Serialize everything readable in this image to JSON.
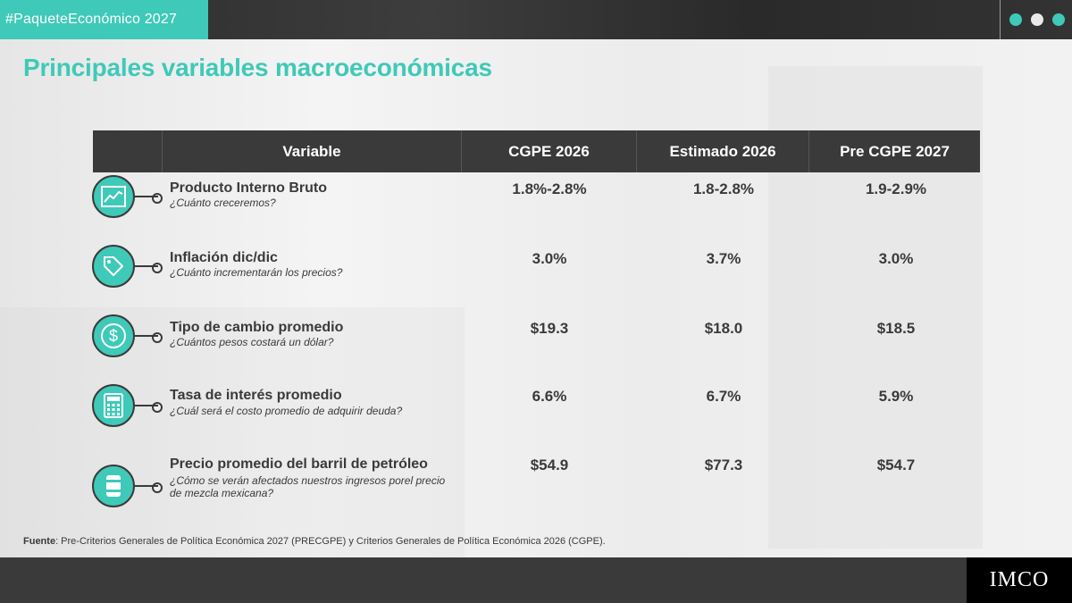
{
  "header": {
    "hashtag": "#PaqueteEconómico 2027",
    "accent_color": "#3fc9b8",
    "dark_color": "#3a3a3a"
  },
  "title": "Principales variables macroeconómicas",
  "table": {
    "columns": [
      "Variable",
      "CGPE 2026",
      "Estimado 2026",
      "Pre CGPE 2027"
    ],
    "rows": [
      {
        "name": "Producto Interno Bruto",
        "question": "¿Cuánto creceremos?",
        "icon": "growth-chart-icon",
        "values": [
          "1.8%-2.8%",
          "1.8-2.8%",
          "1.9-2.9%"
        ]
      },
      {
        "name": "Inflación dic/dic",
        "question": "¿Cuánto incrementarán los precios?",
        "icon": "price-tag-icon",
        "values": [
          "3.0%",
          "3.7%",
          "3.0%"
        ]
      },
      {
        "name": "Tipo de cambio promedio",
        "question": "¿Cuántos pesos costará un dólar?",
        "icon": "dollar-sign-icon",
        "values": [
          "$19.3",
          "$18.0",
          "$18.5"
        ]
      },
      {
        "name": "Tasa de interés promedio",
        "question": "¿Cuál será el costo promedio de adquirir deuda?",
        "icon": "calculator-icon",
        "values": [
          "6.6%",
          "6.7%",
          "5.9%"
        ]
      },
      {
        "name": "Precio promedio del barril de petróleo",
        "question": "¿Cómo se verán afectados nuestros ingresos porel precio de mezcla mexicana?",
        "icon": "oil-barrel-icon",
        "values": [
          "$54.9",
          "$77.3",
          "$54.7"
        ]
      }
    ]
  },
  "source": {
    "label": "Fuente",
    "text": ": Pre-Criterios Generales de Política Económica 2027 (PRECGPE) y Criterios Generales de Política Económica 2026 (CGPE)."
  },
  "footer": {
    "logo": "IMCO"
  }
}
